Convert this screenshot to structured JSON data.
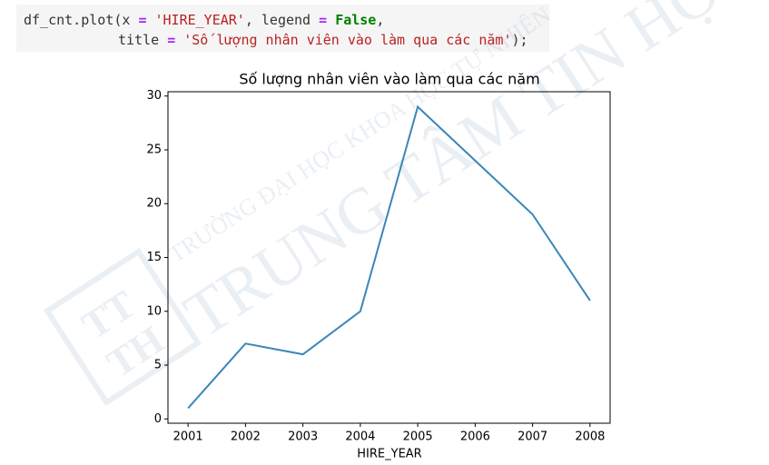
{
  "code": {
    "lines": [
      [
        "df_cnt.plot(x ",
        "=",
        " ",
        "'HIRE_YEAR'",
        ", legend ",
        "=",
        " ",
        "False",
        ","
      ],
      [
        "title ",
        "=",
        " ",
        "'Số lượng nhân viên vào làm qua các năm'",
        ");"
      ]
    ],
    "colors": [
      [
        "#333333",
        "#aa22ff",
        "#333333",
        "#ba2121",
        "#333333",
        "#aa22ff",
        "#333333",
        "#008000",
        "#333333"
      ],
      [
        "#333333",
        "#aa22ff",
        "#333333",
        "#ba2121",
        "#333333"
      ]
    ]
  },
  "watermark": {
    "school": "TRƯỜNG ĐẠI HỌC KHOA HỌC TỰ NHIÊN",
    "center": "TRUNG TÂM TIN HỌC",
    "logo": [
      "TT",
      "TH"
    ]
  },
  "chart_data": {
    "type": "line",
    "title": "Số lượng nhân viên vào làm qua các năm",
    "x_label": "HIRE_YEAR",
    "x": [
      2001,
      2002,
      2003,
      2004,
      2005,
      2006,
      2007,
      2008
    ],
    "series": [
      {
        "name": "HIRE_YEAR",
        "color": "#3a86b8",
        "values": [
          1,
          7,
          6,
          10,
          29,
          24,
          19,
          11
        ]
      }
    ],
    "xlim": [
      2000.65,
      2008.35
    ],
    "xticks": [
      2001,
      2002,
      2003,
      2004,
      2005,
      2006,
      2007,
      2008
    ],
    "ylim": [
      -0.4,
      30.4
    ],
    "yticks": [
      0,
      5,
      10,
      15,
      20,
      25,
      30
    ],
    "grid": false,
    "legend": false
  }
}
